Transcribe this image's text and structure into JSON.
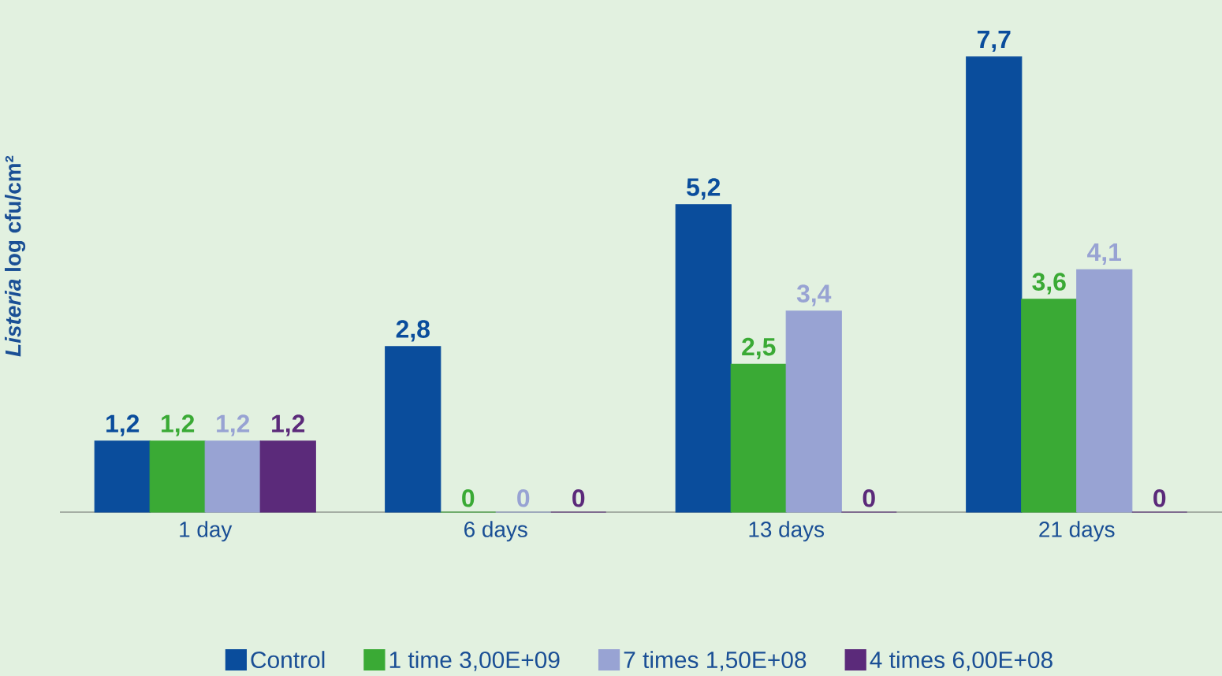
{
  "chart_data": {
    "type": "bar",
    "ylabel": "*Listeria* log cfu/cm²",
    "categories": [
      "1 day",
      "6 days",
      "13 days",
      "21 days"
    ],
    "series": [
      {
        "name": "Control",
        "color": "#0a4d9c",
        "values": [
          1.2,
          2.8,
          5.2,
          7.7
        ],
        "value_labels": [
          "1,2",
          "2,8",
          "5,2",
          "7,7"
        ]
      },
      {
        "name": "1 time 3,00E+09",
        "color": "#3aaa35",
        "values": [
          1.2,
          0,
          2.5,
          3.6
        ],
        "value_labels": [
          "1,2",
          "0",
          "2,5",
          "3,6"
        ]
      },
      {
        "name": "7 times 1,50E+08",
        "color": "#98a3d3",
        "values": [
          1.2,
          0,
          3.4,
          4.1
        ],
        "value_labels": [
          "1,2",
          "0",
          "3,4",
          "4,1"
        ]
      },
      {
        "name": "4 times 6,00E+08",
        "color": "#5b2a7a",
        "values": [
          1.2,
          0,
          0,
          0
        ],
        "value_labels": [
          "1,2",
          "0",
          "0",
          "0"
        ]
      }
    ],
    "legend": "bottom"
  }
}
